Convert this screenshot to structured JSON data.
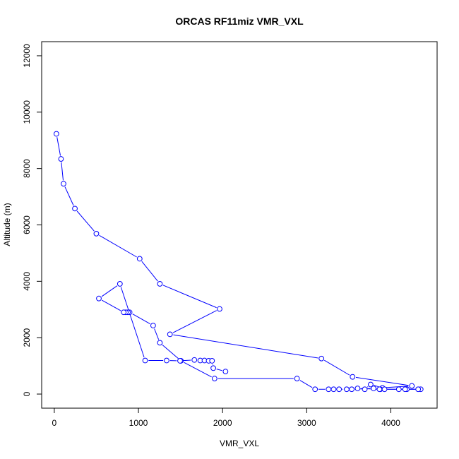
{
  "chart_data": {
    "type": "line",
    "title": "ORCAS RF11miz VMR_VXL",
    "xlabel": "VMR_VXL",
    "ylabel": "Altitude (m)",
    "xlim": [
      -150,
      4550
    ],
    "ylim": [
      -500,
      12500
    ],
    "xticks": [
      0,
      1000,
      2000,
      3000,
      4000
    ],
    "yticks": [
      0,
      2000,
      4000,
      6000,
      8000,
      10000,
      12000
    ],
    "series": [
      {
        "color": "#0000ff",
        "x": [
          25,
          80,
          110,
          245,
          500,
          1015,
          1255,
          1965,
          1375,
          3175,
          3545,
          4250,
          3900,
          3760,
          3690,
          3605,
          3875,
          4190,
          4355,
          4325,
          4170,
          4095,
          3925,
          3865,
          3795,
          3535,
          3475,
          3385,
          3320,
          3260,
          3100,
          2885,
          1905,
          1505,
          1255,
          1175,
          895,
          875,
          850,
          825,
          530,
          780,
          1080,
          1335,
          1495,
          1665,
          1735,
          1785,
          1835,
          1875,
          1890,
          2035
        ],
        "y": [
          9230,
          8340,
          7460,
          6580,
          5690,
          4800,
          3910,
          3020,
          2120,
          1260,
          610,
          290,
          220,
          340,
          170,
          200,
          170,
          170,
          170,
          170,
          170,
          170,
          170,
          170,
          200,
          170,
          170,
          170,
          170,
          170,
          170,
          550,
          550,
          1180,
          1820,
          2430,
          2900,
          2900,
          2900,
          2900,
          3390,
          3910,
          1190,
          1190,
          1180,
          1210,
          1190,
          1190,
          1180,
          1180,
          920,
          800
        ]
      }
    ]
  }
}
